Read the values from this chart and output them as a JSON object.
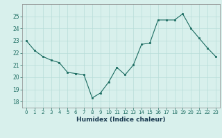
{
  "x": [
    0,
    1,
    2,
    3,
    4,
    5,
    6,
    7,
    8,
    9,
    10,
    11,
    12,
    13,
    14,
    15,
    16,
    17,
    18,
    19,
    20,
    21,
    22,
    23
  ],
  "y": [
    23.0,
    22.2,
    21.7,
    21.4,
    21.2,
    20.4,
    20.3,
    20.2,
    18.3,
    18.7,
    19.6,
    20.8,
    20.2,
    21.0,
    22.7,
    22.8,
    24.7,
    24.7,
    24.7,
    25.2,
    24.0,
    23.2,
    22.4,
    21.7
  ],
  "xlim": [
    -0.5,
    23.5
  ],
  "ylim": [
    17.5,
    26.0
  ],
  "yticks": [
    18,
    19,
    20,
    21,
    22,
    23,
    24,
    25
  ],
  "xticks": [
    0,
    1,
    2,
    3,
    4,
    5,
    6,
    7,
    8,
    9,
    10,
    11,
    12,
    13,
    14,
    15,
    16,
    17,
    18,
    19,
    20,
    21,
    22,
    23
  ],
  "xtick_labels": [
    "0",
    "1",
    "2",
    "3",
    "4",
    "5",
    "6",
    "7",
    "8",
    "9",
    "10",
    "11",
    "12",
    "13",
    "14",
    "15",
    "16",
    "17",
    "18",
    "19",
    "20",
    "21",
    "22",
    "23"
  ],
  "xlabel": "Humidex (Indice chaleur)",
  "line_color": "#1a6b60",
  "marker_color": "#1a6b60",
  "bg_color": "#d8f0ec",
  "grid_color": "#b8ddd8",
  "title": ""
}
